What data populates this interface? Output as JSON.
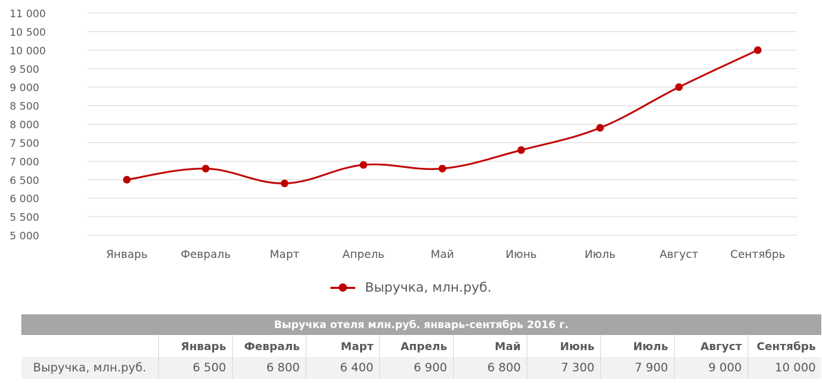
{
  "chart_data": {
    "type": "line",
    "categories": [
      "Январь",
      "Февраль",
      "Март",
      "Апрель",
      "Май",
      "Июнь",
      "Июль",
      "Август",
      "Сентябрь"
    ],
    "series": [
      {
        "name": "Выручка, млн.руб.",
        "values": [
          6500,
          6800,
          6400,
          6900,
          6800,
          7300,
          7900,
          9000,
          10000
        ],
        "color": "#c00000"
      }
    ],
    "ylim": [
      5000,
      11000
    ],
    "yticks": [
      5000,
      5500,
      6000,
      6500,
      7000,
      7500,
      8000,
      8500,
      9000,
      9500,
      10000,
      10500,
      11000
    ],
    "ytick_labels": [
      "5 000",
      "5 500",
      "6 000",
      "6 500",
      "7 000",
      "7 500",
      "8 000",
      "8 500",
      "9 000",
      "9 500",
      "10 000",
      "10 500",
      "11 000"
    ],
    "grid": true,
    "legend_position": "bottom"
  },
  "table": {
    "title": "Выручка отеля млн.руб. январь-сентябрь 2016 г.",
    "headers": [
      "Январь",
      "Февраль",
      "Март",
      "Апрель",
      "Май",
      "Июнь",
      "Июль",
      "Август",
      "Сентябрь"
    ],
    "row_label": "Выручка, млн.руб.",
    "values": [
      "6 500",
      "6 800",
      "6 400",
      "6 900",
      "6 800",
      "7 300",
      "7 900",
      "9 000",
      "10 000"
    ]
  },
  "colors": {
    "series": "#c00000",
    "grid": "#d9d9d9",
    "table_header": "#a6a6a6",
    "table_row": "#f2f2f2"
  }
}
